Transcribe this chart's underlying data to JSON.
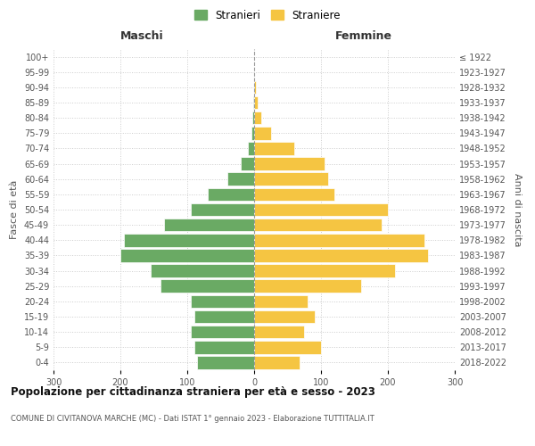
{
  "age_groups": [
    "0-4",
    "5-9",
    "10-14",
    "15-19",
    "20-24",
    "25-29",
    "30-34",
    "35-39",
    "40-44",
    "45-49",
    "50-54",
    "55-59",
    "60-64",
    "65-69",
    "70-74",
    "75-79",
    "80-84",
    "85-89",
    "90-94",
    "95-99",
    "100+"
  ],
  "birth_years": [
    "2018-2022",
    "2013-2017",
    "2008-2012",
    "2003-2007",
    "1998-2002",
    "1993-1997",
    "1988-1992",
    "1983-1987",
    "1978-1982",
    "1973-1977",
    "1968-1972",
    "1963-1967",
    "1958-1962",
    "1953-1957",
    "1948-1952",
    "1943-1947",
    "1938-1942",
    "1933-1937",
    "1928-1932",
    "1923-1927",
    "≤ 1922"
  ],
  "males": [
    85,
    90,
    95,
    90,
    95,
    140,
    155,
    200,
    195,
    135,
    95,
    70,
    40,
    20,
    10,
    4,
    3,
    2,
    0,
    0,
    0
  ],
  "females": [
    68,
    100,
    75,
    90,
    80,
    160,
    210,
    260,
    255,
    190,
    200,
    120,
    110,
    105,
    60,
    25,
    10,
    5,
    2,
    0,
    0
  ],
  "male_color": "#6aaa64",
  "female_color": "#f5c542",
  "male_label": "Stranieri",
  "female_label": "Straniere",
  "title": "Popolazione per cittadinanza straniera per età e sesso - 2023",
  "subtitle": "COMUNE DI CIVITANOVA MARCHE (MC) - Dati ISTAT 1° gennaio 2023 - Elaborazione TUTTITALIA.IT",
  "xlabel_left": "Maschi",
  "xlabel_right": "Femmine",
  "ylabel_left": "Fasce di età",
  "ylabel_right": "Anni di nascita",
  "xlim": 300,
  "background_color": "#ffffff",
  "grid_color": "#cccccc"
}
